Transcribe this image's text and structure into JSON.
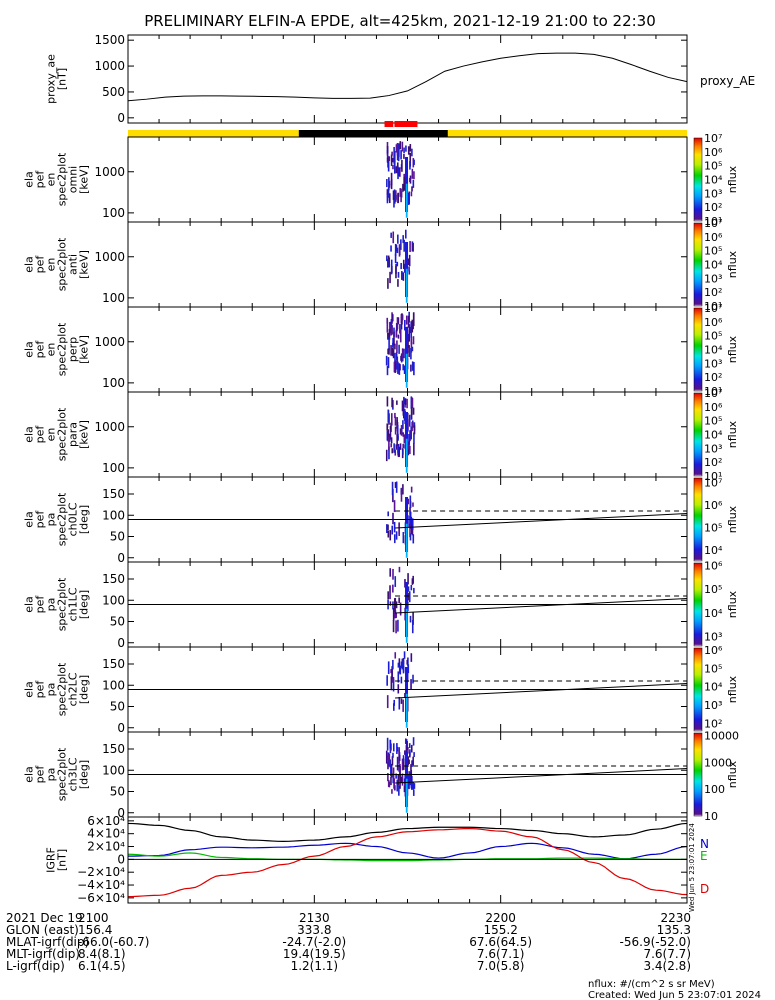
{
  "title": "PRELIMINARY ELFIN-A EPDE, alt=425km, 2021-12-19 21:00 to 22:30",
  "colors": {
    "sunlight_bar": "#ffdd00",
    "shadow_bar": "#000000",
    "science_bar": "#ff0000",
    "ae_line": "#000000",
    "igrf_n": "#0000cc",
    "igrf_e": "#00bb00",
    "igrf_d": "#dd0000",
    "igrf_total": "#000000"
  },
  "chart_data": [
    {
      "type": "line",
      "name": "proxy_ae",
      "ylabel": [
        "proxy_ae",
        "[nT]"
      ],
      "series_label": "proxy_AE",
      "ylim": [
        -100,
        1600
      ],
      "yticks": [
        "1500",
        "1000",
        "500",
        "0"
      ],
      "ytick_values": [
        1500,
        1000,
        500,
        0
      ],
      "x": [
        0,
        3,
        6,
        9,
        12,
        15,
        18,
        21,
        24,
        27,
        30,
        33,
        36,
        39,
        42,
        45,
        48,
        51,
        54,
        57,
        60,
        63,
        66,
        69,
        72,
        75,
        78,
        81,
        84,
        87,
        90
      ],
      "values": [
        330,
        360,
        400,
        420,
        425,
        425,
        420,
        415,
        410,
        400,
        385,
        375,
        375,
        380,
        430,
        520,
        700,
        900,
        1000,
        1080,
        1150,
        1200,
        1240,
        1250,
        1250,
        1225,
        1150,
        1030,
        900,
        780,
        700
      ]
    },
    {
      "type": "timebar",
      "segments": [
        {
          "from": 0,
          "to": 27.5,
          "kind": "sunlight"
        },
        {
          "from": 27.5,
          "to": 51.5,
          "kind": "shadow"
        },
        {
          "from": 51.5,
          "to": 90,
          "kind": "sunlight"
        }
      ],
      "science": [
        {
          "from": 41.3,
          "to": 42.7
        },
        {
          "from": 42.9,
          "to": 46.6
        }
      ]
    },
    {
      "type": "heatmap",
      "name": "omni",
      "ylabel": [
        "ela",
        "pef",
        "en",
        "spec2plot",
        "omni",
        "[keV]"
      ],
      "scale": "log",
      "ylim": [
        60,
        7000
      ],
      "yticks": [
        "1000",
        "100"
      ],
      "ytick_values": [
        1000,
        100
      ],
      "colorbar": {
        "label": "nflux",
        "ticks": [
          "10⁷",
          "10⁶",
          "10⁵",
          "10⁴",
          "10³",
          "10²",
          "10¹"
        ],
        "tick_values": [
          7,
          6,
          5,
          4,
          3,
          2,
          1
        ],
        "range": [
          1,
          7
        ]
      }
    },
    {
      "type": "heatmap",
      "name": "anti",
      "ylabel": [
        "ela",
        "pef",
        "en",
        "spec2plot",
        "anti",
        "[keV]"
      ],
      "scale": "log",
      "ylim": [
        60,
        7000
      ],
      "yticks": [
        "1000",
        "100"
      ],
      "ytick_values": [
        1000,
        100
      ],
      "colorbar": {
        "label": "nflux",
        "ticks": [
          "10⁷",
          "10⁶",
          "10⁵",
          "10⁴",
          "10³",
          "10²",
          "10¹"
        ],
        "tick_values": [
          7,
          6,
          5,
          4,
          3,
          2,
          1
        ],
        "range": [
          1,
          7
        ]
      }
    },
    {
      "type": "heatmap",
      "name": "perp",
      "ylabel": [
        "ela",
        "pef",
        "en",
        "spec2plot",
        "perp",
        "[keV]"
      ],
      "scale": "log",
      "ylim": [
        60,
        7000
      ],
      "yticks": [
        "1000",
        "100"
      ],
      "ytick_values": [
        1000,
        100
      ],
      "colorbar": {
        "label": "nflux",
        "ticks": [
          "10⁷",
          "10⁶",
          "10⁵",
          "10⁴",
          "10³",
          "10²",
          "10¹"
        ],
        "tick_values": [
          7,
          6,
          5,
          4,
          3,
          2,
          1
        ],
        "range": [
          1,
          7
        ]
      }
    },
    {
      "type": "heatmap",
      "name": "para",
      "ylabel": [
        "ela",
        "pef",
        "en",
        "spec2plot",
        "para",
        "[keV]"
      ],
      "scale": "log",
      "ylim": [
        60,
        7000
      ],
      "yticks": [
        "1000",
        "100"
      ],
      "ytick_values": [
        1000,
        100
      ],
      "colorbar": {
        "label": "nflux",
        "ticks": [
          "10⁷",
          "10⁶",
          "10⁵",
          "10⁴",
          "10³",
          "10²",
          "10¹"
        ],
        "tick_values": [
          7,
          6,
          5,
          4,
          3,
          2,
          1
        ],
        "range": [
          1,
          7
        ]
      }
    },
    {
      "type": "heatmap",
      "name": "ch0LC",
      "ylabel": [
        "ela",
        "pef",
        "pa",
        "spec2plot",
        "ch0LC",
        "[deg]"
      ],
      "scale": "linear",
      "ylim": [
        -10,
        190
      ],
      "yticks": [
        "150",
        "100",
        "50",
        "0"
      ],
      "ytick_values": [
        150,
        100,
        50,
        0
      ],
      "lines": {
        "solid": [
          70,
          104
        ],
        "dashed": [
          110,
          110
        ],
        "ref": 90
      },
      "colorbar": {
        "label": "nflux",
        "ticks": [
          "10⁷",
          "10⁶",
          "10⁵",
          "10⁴"
        ],
        "tick_values": [
          7,
          6,
          5,
          4
        ],
        "range": [
          3.5,
          7.2
        ]
      }
    },
    {
      "type": "heatmap",
      "name": "ch1LC",
      "ylabel": [
        "ela",
        "pef",
        "pa",
        "spec2plot",
        "ch1LC",
        "[deg]"
      ],
      "scale": "linear",
      "ylim": [
        -10,
        190
      ],
      "yticks": [
        "150",
        "100",
        "50",
        "0"
      ],
      "ytick_values": [
        150,
        100,
        50,
        0
      ],
      "lines": {
        "solid": [
          70,
          104
        ],
        "dashed": [
          110,
          110
        ],
        "ref": 90
      },
      "colorbar": {
        "label": "nflux",
        "ticks": [
          "10⁶",
          "10⁵",
          "10⁴",
          "10³"
        ],
        "tick_values": [
          6,
          5,
          4,
          3
        ],
        "range": [
          2.6,
          6.1
        ]
      }
    },
    {
      "type": "heatmap",
      "name": "ch2LC",
      "ylabel": [
        "ela",
        "pef",
        "pa",
        "spec2plot",
        "ch2LC",
        "[deg]"
      ],
      "scale": "linear",
      "ylim": [
        -10,
        190
      ],
      "yticks": [
        "150",
        "100",
        "50",
        "0"
      ],
      "ytick_values": [
        150,
        100,
        50,
        0
      ],
      "lines": {
        "solid": [
          70,
          104
        ],
        "dashed": [
          110,
          110
        ],
        "ref": 90
      },
      "colorbar": {
        "label": "nflux",
        "ticks": [
          "10⁶",
          "10⁵",
          "10⁴",
          "10³",
          "10²"
        ],
        "tick_values": [
          6,
          5,
          4,
          3,
          2
        ],
        "range": [
          1.6,
          6.1
        ]
      }
    },
    {
      "type": "heatmap",
      "name": "ch3LC",
      "ylabel": [
        "ela",
        "pef",
        "pa",
        "spec2plot",
        "ch3LC",
        "[deg]"
      ],
      "scale": "linear",
      "ylim": [
        -10,
        190
      ],
      "yticks": [
        "150",
        "100",
        "50",
        "0"
      ],
      "ytick_values": [
        150,
        100,
        50,
        0
      ],
      "lines": {
        "solid": [
          70,
          104
        ],
        "dashed": [
          110,
          110
        ],
        "ref": 90
      },
      "colorbar": {
        "label": "nflux",
        "ticks": [
          "10000",
          "1000",
          "100",
          "10"
        ],
        "tick_values": [
          4,
          3,
          2,
          1
        ],
        "range": [
          1,
          4.1
        ]
      }
    },
    {
      "type": "line",
      "name": "igrf",
      "ylabel": [
        "IGRF",
        "[nT]"
      ],
      "ylim": [
        -68000,
        66000
      ],
      "yticks": [
        "6×10⁴",
        "4×10⁴",
        "2×10⁴",
        "0",
        "−2×10⁴",
        "−4×10⁴",
        "−6×10⁴"
      ],
      "ytick_values": [
        60000,
        40000,
        20000,
        0,
        -20000,
        -40000,
        -60000
      ],
      "series": [
        {
          "name": "N",
          "x": [
            0,
            5,
            10,
            15,
            20,
            25,
            30,
            35,
            40,
            45,
            50,
            55,
            60,
            65,
            70,
            75,
            80,
            85,
            90
          ],
          "values": [
            5000,
            6000,
            15000,
            19000,
            18000,
            19000,
            22000,
            25000,
            20000,
            10000,
            2000,
            10000,
            20000,
            25000,
            18000,
            8000,
            1000,
            8000,
            20000
          ]
        },
        {
          "name": "E",
          "x": [
            0,
            5,
            10,
            15,
            20,
            25,
            30,
            35,
            40,
            45,
            50,
            55,
            60,
            65,
            70,
            75,
            80,
            85,
            90
          ],
          "values": [
            8000,
            5000,
            10000,
            3000,
            1000,
            0,
            0,
            -1000,
            -2000,
            -2000,
            -1000,
            0,
            1000,
            1000,
            2000,
            2000,
            1000,
            0,
            0
          ]
        },
        {
          "name": "D",
          "x": [
            0,
            5,
            10,
            15,
            20,
            25,
            30,
            35,
            40,
            45,
            50,
            55,
            60,
            65,
            70,
            75,
            80,
            85,
            90
          ],
          "values": [
            -58000,
            -56000,
            -45000,
            -25000,
            -20000,
            -8000,
            5000,
            20000,
            35000,
            43000,
            46000,
            48000,
            44000,
            35000,
            15000,
            -5000,
            -30000,
            -48000,
            -55000
          ]
        },
        {
          "name": "",
          "x": [
            0,
            5,
            10,
            15,
            20,
            25,
            30,
            35,
            40,
            45,
            50,
            55,
            60,
            65,
            70,
            75,
            80,
            85,
            90
          ],
          "values": [
            56000,
            53000,
            45000,
            35000,
            30000,
            28000,
            30000,
            35000,
            42000,
            48000,
            50000,
            50000,
            48000,
            45000,
            40000,
            35000,
            38000,
            47000,
            56000
          ]
        }
      ]
    }
  ],
  "side_stamp": "Wed Jun  5 23:07:01 2024",
  "axis_table": {
    "rows": [
      {
        "label": "2021 Dec 19",
        "values": [
          "2100",
          "2130",
          "2200",
          "2230"
        ]
      },
      {
        "label": "GLON (east)",
        "values": [
          "156.4",
          "333.8",
          "155.2",
          "135.3"
        ]
      },
      {
        "label": "MLAT-igrf(dip)",
        "values": [
          "-66.0(-60.7)",
          "-24.7(-2.0)",
          "67.6(64.5)",
          "-56.9(-52.0)"
        ]
      },
      {
        "label": "MLT-igrf(dip)",
        "values": [
          "8.4(8.1)",
          "19.4(19.5)",
          "7.6(7.1)",
          "7.6(7.7)"
        ]
      },
      {
        "label": "L-igrf(dip)",
        "values": [
          "6.1(4.5)",
          "1.2(1.1)",
          "7.0(5.8)",
          "3.4(2.8)"
        ]
      }
    ],
    "tick_minutes": [
      0,
      30,
      60,
      90
    ]
  },
  "footer": {
    "units": "nflux: #/(cm^2 s sr MeV)",
    "created": "Created: Wed Jun  5 23:07:01 2024"
  }
}
